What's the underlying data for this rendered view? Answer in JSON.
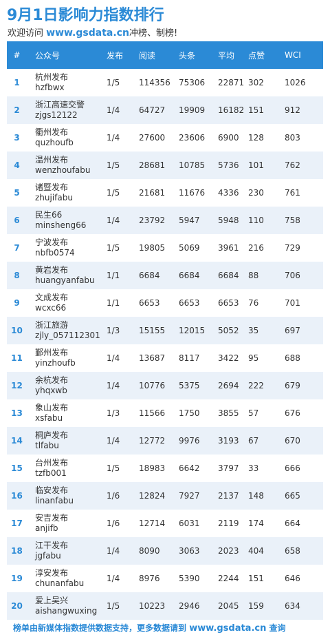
{
  "title": "9月1日影响力指数排行",
  "subtitle": {
    "prefix": "欢迎访问",
    "site": "www.gsdata.cn",
    "suffix": "冲榜、制榜!"
  },
  "table": {
    "headers": [
      "#",
      "公众号",
      "发布",
      "阅读",
      "头条",
      "平均",
      "点赞",
      "WCI"
    ],
    "rows": [
      {
        "rank": "1",
        "name": "杭州发布",
        "id": "hzfbwx",
        "publish": "1/5",
        "read": "114356",
        "headline": "75306",
        "avg": "22871",
        "likes": "302",
        "wci": "1026"
      },
      {
        "rank": "2",
        "name": "浙江高速交警",
        "id": "zjgs12122",
        "publish": "1/4",
        "read": "64727",
        "headline": "19909",
        "avg": "16182",
        "likes": "151",
        "wci": "912"
      },
      {
        "rank": "3",
        "name": "衢州发布",
        "id": "quzhoufb",
        "publish": "1/4",
        "read": "27600",
        "headline": "23606",
        "avg": "6900",
        "likes": "128",
        "wci": "803"
      },
      {
        "rank": "4",
        "name": "温州发布",
        "id": "wenzhoufabu",
        "publish": "1/5",
        "read": "28681",
        "headline": "10785",
        "avg": "5736",
        "likes": "101",
        "wci": "762"
      },
      {
        "rank": "5",
        "name": "诸暨发布",
        "id": "zhujifabu",
        "publish": "1/5",
        "read": "21681",
        "headline": "11676",
        "avg": "4336",
        "likes": "230",
        "wci": "761"
      },
      {
        "rank": "6",
        "name": "民生66",
        "id": "minsheng66",
        "publish": "1/4",
        "read": "23792",
        "headline": "5947",
        "avg": "5948",
        "likes": "110",
        "wci": "758"
      },
      {
        "rank": "7",
        "name": "宁波发布",
        "id": "nbfb0574",
        "publish": "1/5",
        "read": "19805",
        "headline": "5069",
        "avg": "3961",
        "likes": "216",
        "wci": "729"
      },
      {
        "rank": "8",
        "name": "黄岩发布",
        "id": "huangyanfabu",
        "publish": "1/1",
        "read": "6684",
        "headline": "6684",
        "avg": "6684",
        "likes": "88",
        "wci": "706"
      },
      {
        "rank": "9",
        "name": "文成发布",
        "id": "wcxc66",
        "publish": "1/1",
        "read": "6653",
        "headline": "6653",
        "avg": "6653",
        "likes": "76",
        "wci": "701"
      },
      {
        "rank": "10",
        "name": "浙江旅游",
        "id": "zjly_057112301",
        "publish": "1/3",
        "read": "15155",
        "headline": "12015",
        "avg": "5052",
        "likes": "35",
        "wci": "697"
      },
      {
        "rank": "11",
        "name": "鄞州发布",
        "id": "yinzhoufb",
        "publish": "1/4",
        "read": "13687",
        "headline": "8117",
        "avg": "3422",
        "likes": "95",
        "wci": "688"
      },
      {
        "rank": "12",
        "name": "余杭发布",
        "id": "yhqxwb",
        "publish": "1/4",
        "read": "10776",
        "headline": "5375",
        "avg": "2694",
        "likes": "222",
        "wci": "679"
      },
      {
        "rank": "13",
        "name": "象山发布",
        "id": "xsfabu",
        "publish": "1/3",
        "read": "11566",
        "headline": "1750",
        "avg": "3855",
        "likes": "57",
        "wci": "676"
      },
      {
        "rank": "14",
        "name": "桐庐发布",
        "id": "tlfabu",
        "publish": "1/4",
        "read": "12772",
        "headline": "9976",
        "avg": "3193",
        "likes": "67",
        "wci": "670"
      },
      {
        "rank": "15",
        "name": "台州发布",
        "id": "tzfb001",
        "publish": "1/5",
        "read": "18983",
        "headline": "6642",
        "avg": "3797",
        "likes": "33",
        "wci": "666"
      },
      {
        "rank": "16",
        "name": "临安发布",
        "id": "linanfabu",
        "publish": "1/6",
        "read": "12824",
        "headline": "7927",
        "avg": "2137",
        "likes": "148",
        "wci": "665"
      },
      {
        "rank": "17",
        "name": "安吉发布",
        "id": "anjifb",
        "publish": "1/6",
        "read": "12714",
        "headline": "6031",
        "avg": "2119",
        "likes": "174",
        "wci": "664"
      },
      {
        "rank": "18",
        "name": "江干发布",
        "id": "jgfabu",
        "publish": "1/4",
        "read": "8090",
        "headline": "3063",
        "avg": "2023",
        "likes": "404",
        "wci": "658"
      },
      {
        "rank": "19",
        "name": "淳安发布",
        "id": "chunanfabu",
        "publish": "1/4",
        "read": "8976",
        "headline": "5390",
        "avg": "2244",
        "likes": "151",
        "wci": "646"
      },
      {
        "rank": "20",
        "name": "爱上吴兴",
        "id": "aishangwuxing",
        "publish": "1/5",
        "read": "10223",
        "headline": "2946",
        "avg": "2045",
        "likes": "159",
        "wci": "634"
      }
    ]
  },
  "footer": {
    "prefix": "榜单由新媒体指数提供数据支持，更多数据请到",
    "site": "www.gsdata.cn",
    "suffix": "查询"
  },
  "colors": {
    "accent": "#2b8ad6",
    "row_alt": "#eaf1f9"
  }
}
